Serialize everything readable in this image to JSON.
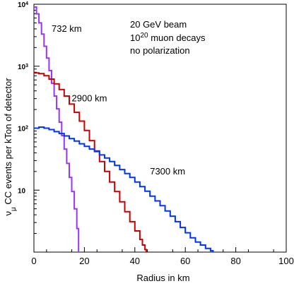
{
  "chart_data": {
    "type": "line",
    "xlabel": "Radius in km",
    "ylabel_main": "ν",
    "ylabel_sub": "μ",
    "ylabel_rest": " CC events per kTon of detector",
    "xlim": [
      0,
      100
    ],
    "ylim": [
      1,
      10000
    ],
    "yscale": "log",
    "grid": false,
    "x_ticks": [
      {
        "value": 0,
        "label": "0"
      },
      {
        "value": 20,
        "label": "20"
      },
      {
        "value": 40,
        "label": "40"
      },
      {
        "value": 60,
        "label": "60"
      },
      {
        "value": 80,
        "label": "80"
      },
      {
        "value": 100,
        "label": "100"
      }
    ],
    "y_ticks": [
      {
        "value": 10,
        "base": "10",
        "exp": ""
      },
      {
        "value": 100,
        "base": "10",
        "exp": "2"
      },
      {
        "value": 1000,
        "base": "10",
        "exp": "3"
      },
      {
        "value": 10000,
        "base": "10",
        "exp": "4"
      }
    ],
    "annotations": [
      {
        "line1": "20 GeV beam",
        "base": "10",
        "exp": "20",
        "rest": " muon decays",
        "line3": "no polarization"
      }
    ],
    "series": [
      {
        "name": "732 km",
        "color": "#9933ff",
        "label_x": 7,
        "label_y": 3600,
        "points": [
          [
            0,
            9000
          ],
          [
            1,
            7000
          ],
          [
            2,
            5000
          ],
          [
            3,
            3300
          ],
          [
            4,
            2100
          ],
          [
            5,
            1350
          ],
          [
            6,
            850
          ],
          [
            7,
            530
          ],
          [
            8,
            330
          ],
          [
            9,
            205
          ],
          [
            10,
            125
          ],
          [
            11,
            76
          ],
          [
            12,
            46
          ],
          [
            13,
            27
          ],
          [
            14,
            16
          ],
          [
            15,
            9.5
          ],
          [
            16,
            5
          ],
          [
            17,
            2.4
          ],
          [
            17.7,
            1
          ]
        ]
      },
      {
        "name": "2900 km",
        "color": "#cc0000",
        "label_x": 15,
        "label_y": 270,
        "points": [
          [
            0,
            780
          ],
          [
            2,
            760
          ],
          [
            4,
            700
          ],
          [
            6,
            620
          ],
          [
            8,
            520
          ],
          [
            10,
            420
          ],
          [
            12,
            330
          ],
          [
            14,
            245
          ],
          [
            16,
            180
          ],
          [
            18,
            130
          ],
          [
            20,
            92
          ],
          [
            22,
            63
          ],
          [
            24,
            43
          ],
          [
            26,
            29
          ],
          [
            28,
            20
          ],
          [
            30,
            13.5
          ],
          [
            32,
            9.5
          ],
          [
            34,
            6.5
          ],
          [
            36,
            4.5
          ],
          [
            38,
            3.1
          ],
          [
            40,
            2.2
          ],
          [
            42,
            1.6
          ],
          [
            43,
            1.3
          ],
          [
            44,
            1.1
          ],
          [
            44.5,
            1
          ]
        ]
      },
      {
        "name": "7300 km",
        "color": "#0033ff",
        "label_x": 46,
        "label_y": 18,
        "points": [
          [
            0,
            100
          ],
          [
            2,
            104
          ],
          [
            4,
            100
          ],
          [
            6,
            95
          ],
          [
            8,
            88
          ],
          [
            10,
            82
          ],
          [
            12,
            75
          ],
          [
            14,
            68
          ],
          [
            16,
            62
          ],
          [
            18,
            56
          ],
          [
            20,
            51
          ],
          [
            22,
            46
          ],
          [
            24,
            42
          ],
          [
            26,
            37
          ],
          [
            28,
            33
          ],
          [
            30,
            29
          ],
          [
            32,
            25
          ],
          [
            34,
            21.5
          ],
          [
            36,
            18.5
          ],
          [
            38,
            16
          ],
          [
            40,
            13.5
          ],
          [
            42,
            11.4
          ],
          [
            44,
            9.6
          ],
          [
            46,
            8
          ],
          [
            48,
            6.7
          ],
          [
            50,
            5.6
          ],
          [
            52,
            4.6
          ],
          [
            54,
            3.8
          ],
          [
            56,
            3.1
          ],
          [
            58,
            2.5
          ],
          [
            60,
            2.05
          ],
          [
            62,
            1.7
          ],
          [
            64,
            1.45
          ],
          [
            66,
            1.3
          ],
          [
            68,
            1.15
          ],
          [
            70,
            1.05
          ],
          [
            71,
            1
          ]
        ]
      }
    ]
  }
}
